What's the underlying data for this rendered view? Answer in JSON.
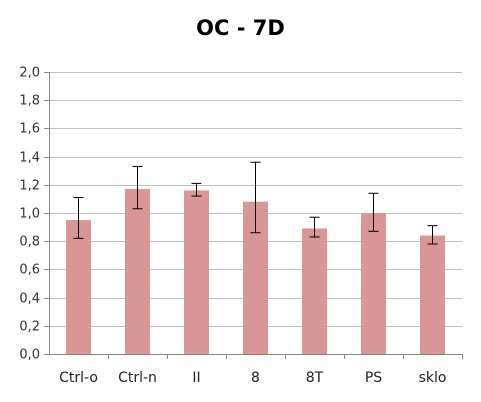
{
  "chart_data": {
    "type": "bar",
    "title": "OC - 7D",
    "xlabel": "",
    "ylabel": "",
    "categories": [
      "Ctrl-o",
      "Ctrl-n",
      "II",
      "8",
      "8T",
      "PS",
      "sklo"
    ],
    "values": [
      0.95,
      1.17,
      1.16,
      1.08,
      0.89,
      1.0,
      0.84
    ],
    "error_low": [
      0.82,
      1.03,
      1.12,
      0.86,
      0.83,
      0.87,
      0.78
    ],
    "error_high": [
      1.11,
      1.33,
      1.21,
      1.36,
      0.97,
      1.14,
      0.91
    ],
    "ylim": [
      0.0,
      2.0
    ],
    "ytick_labels": [
      "0,0",
      "0,2",
      "0,4",
      "0,6",
      "0,8",
      "1,0",
      "1,2",
      "1,4",
      "1,6",
      "1,8",
      "2,0"
    ],
    "grid": true,
    "legend": "none",
    "colors": {
      "bar": "#D99694",
      "grid": "#BFBFBF",
      "axis": "#868686",
      "error": "#000000"
    }
  }
}
